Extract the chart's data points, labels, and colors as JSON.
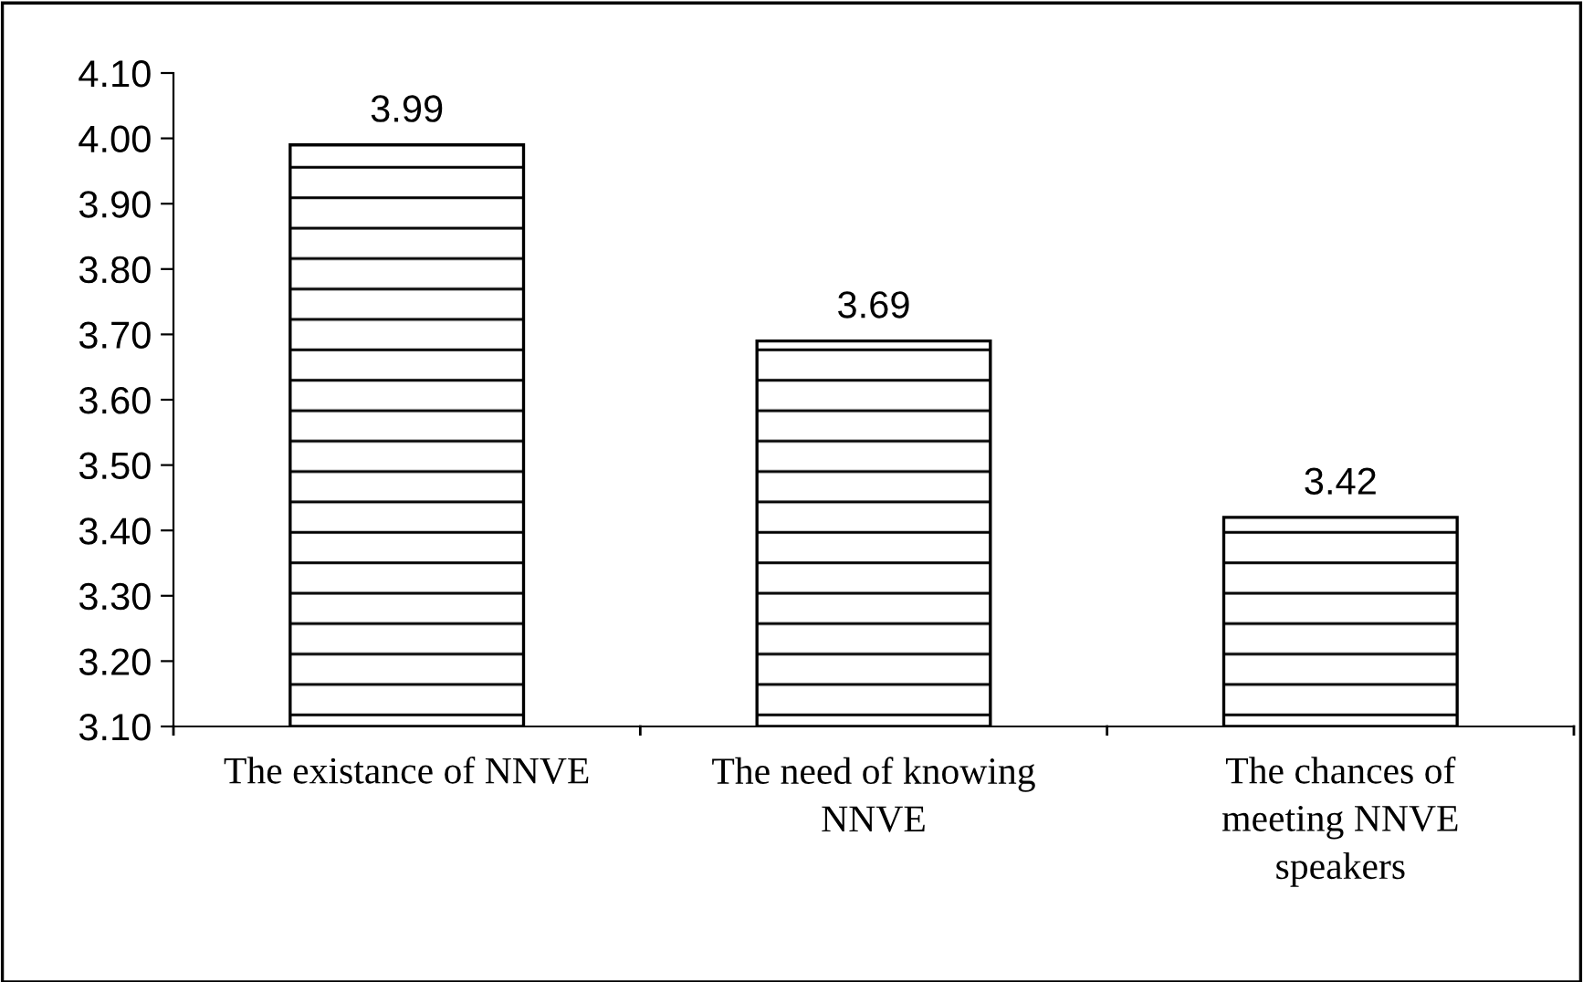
{
  "chart_data": {
    "type": "bar",
    "categories": [
      "The existance of NNVE",
      "The need of knowing\nNNVE",
      "The chances of\nmeeting NNVE\nspeakers"
    ],
    "values": [
      3.99,
      3.69,
      3.42
    ],
    "color": "#ffffff",
    "data_labels": true,
    "grid": false,
    "legend": false,
    "ylim": [
      3.1,
      4.1
    ],
    "yticks": [
      {
        "value": 3.1,
        "label": "3.10"
      },
      {
        "value": 3.2,
        "label": "3.20"
      },
      {
        "value": 3.3,
        "label": "3.30"
      },
      {
        "value": 3.4,
        "label": "3.40"
      },
      {
        "value": 3.5,
        "label": "3.50"
      },
      {
        "value": 3.6,
        "label": "3.60"
      },
      {
        "value": 3.7,
        "label": "3.70"
      },
      {
        "value": 3.8,
        "label": "3.80"
      },
      {
        "value": 3.9,
        "label": "3.90"
      },
      {
        "value": 4.0,
        "label": "4.00"
      },
      {
        "value": 4.1,
        "label": "4.10"
      }
    ]
  }
}
